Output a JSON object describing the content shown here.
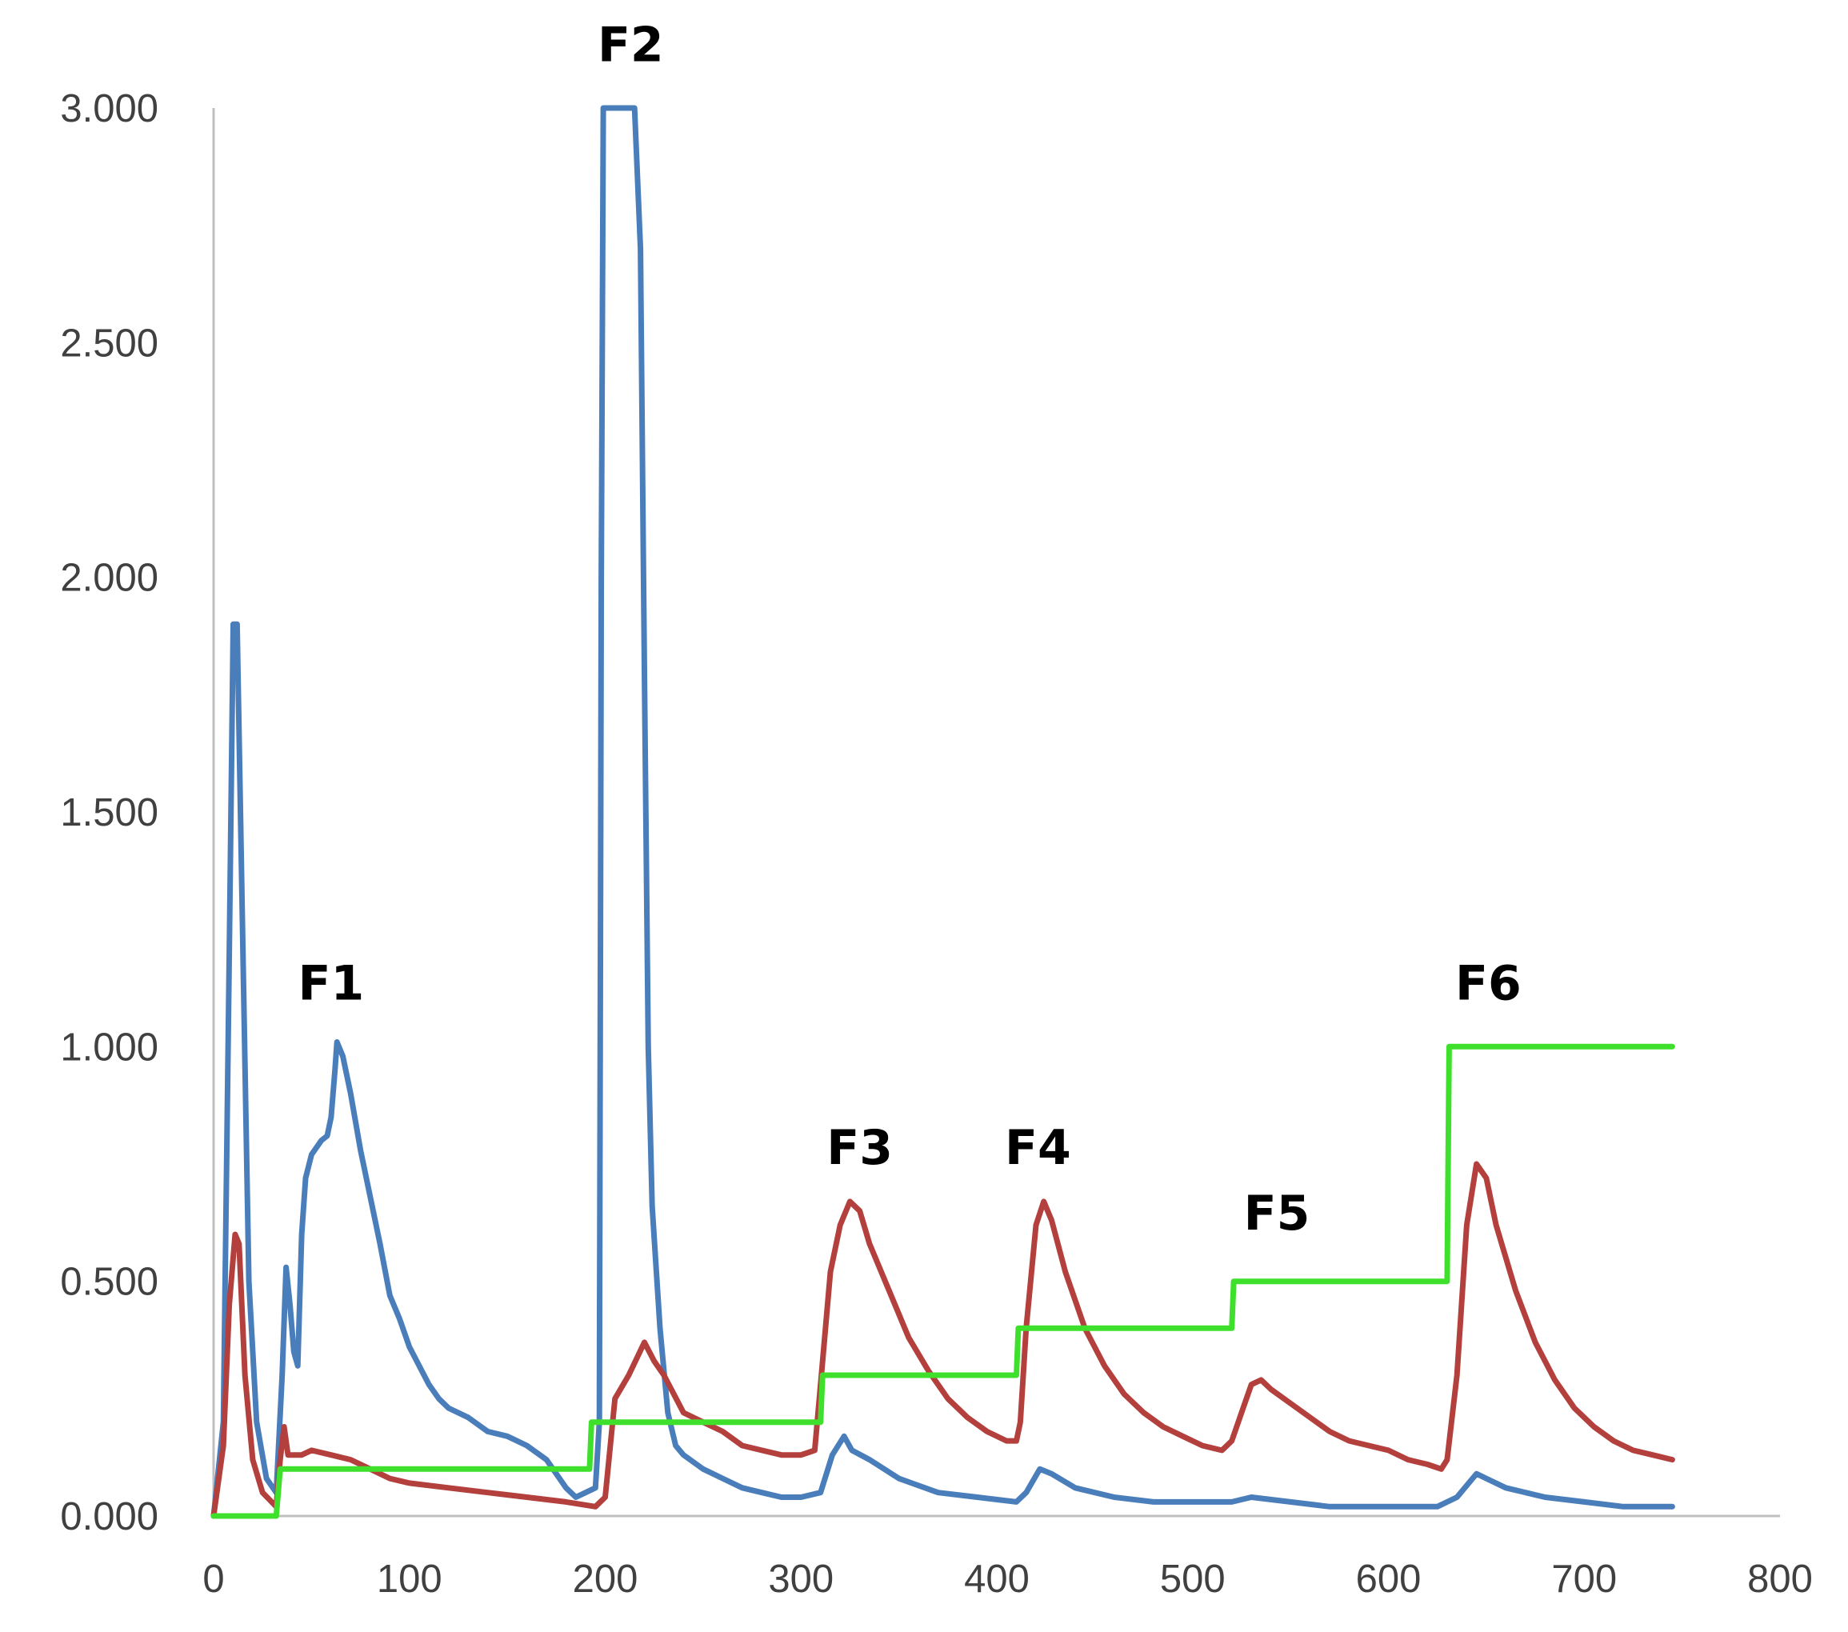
{
  "chart_data": {
    "type": "line",
    "title": "",
    "xlabel": "",
    "ylabel": "",
    "xlim": [
      0,
      800
    ],
    "ylim": [
      0,
      3
    ],
    "grid": false,
    "x_ticks": [
      {
        "value": 0,
        "label": "0"
      },
      {
        "value": 100,
        "label": "100"
      },
      {
        "value": 200,
        "label": "200"
      },
      {
        "value": 300,
        "label": "300"
      },
      {
        "value": 400,
        "label": "400"
      },
      {
        "value": 500,
        "label": "500"
      },
      {
        "value": 600,
        "label": "600"
      },
      {
        "value": 700,
        "label": "700"
      },
      {
        "value": 800,
        "label": "800"
      }
    ],
    "y_ticks": [
      {
        "value": 0,
        "label": "0.000"
      },
      {
        "value": 0.5,
        "label": "0.500"
      },
      {
        "value": 1.0,
        "label": "1.000"
      },
      {
        "value": 1.5,
        "label": "1.500"
      },
      {
        "value": 2.0,
        "label": "2.000"
      },
      {
        "value": 2.5,
        "label": "2.500"
      },
      {
        "value": 3.0,
        "label": "3.000"
      }
    ],
    "series": [
      {
        "name": "blue",
        "color": "#4a7ebb",
        "points": [
          [
            0,
            0
          ],
          [
            5,
            0.2
          ],
          [
            8,
            1.2
          ],
          [
            10,
            1.9
          ],
          [
            12,
            1.9
          ],
          [
            15,
            1.2
          ],
          [
            18,
            0.5
          ],
          [
            22,
            0.2
          ],
          [
            27,
            0.08
          ],
          [
            32,
            0.05
          ],
          [
            35,
            0.3
          ],
          [
            37,
            0.53
          ],
          [
            39,
            0.45
          ],
          [
            41,
            0.35
          ],
          [
            43,
            0.32
          ],
          [
            45,
            0.6
          ],
          [
            47,
            0.72
          ],
          [
            50,
            0.77
          ],
          [
            55,
            0.8
          ],
          [
            58,
            0.81
          ],
          [
            60,
            0.85
          ],
          [
            62,
            0.95
          ],
          [
            63,
            1.01
          ],
          [
            66,
            0.98
          ],
          [
            70,
            0.9
          ],
          [
            75,
            0.78
          ],
          [
            80,
            0.68
          ],
          [
            85,
            0.58
          ],
          [
            90,
            0.47
          ],
          [
            95,
            0.42
          ],
          [
            100,
            0.36
          ],
          [
            105,
            0.32
          ],
          [
            110,
            0.28
          ],
          [
            115,
            0.25
          ],
          [
            120,
            0.23
          ],
          [
            130,
            0.21
          ],
          [
            140,
            0.18
          ],
          [
            150,
            0.17
          ],
          [
            160,
            0.15
          ],
          [
            170,
            0.12
          ],
          [
            180,
            0.06
          ],
          [
            185,
            0.04
          ],
          [
            190,
            0.05
          ],
          [
            195,
            0.06
          ],
          [
            197,
            0.2
          ],
          [
            198,
            2.0
          ],
          [
            199,
            3.0
          ],
          [
            215,
            3.0
          ],
          [
            218,
            2.7
          ],
          [
            220,
            1.8
          ],
          [
            222,
            1.0
          ],
          [
            224,
            0.66
          ],
          [
            228,
            0.4
          ],
          [
            232,
            0.22
          ],
          [
            236,
            0.15
          ],
          [
            240,
            0.13
          ],
          [
            250,
            0.1
          ],
          [
            260,
            0.08
          ],
          [
            270,
            0.06
          ],
          [
            280,
            0.05
          ],
          [
            290,
            0.04
          ],
          [
            300,
            0.04
          ],
          [
            310,
            0.05
          ],
          [
            316,
            0.13
          ],
          [
            322,
            0.17
          ],
          [
            326,
            0.14
          ],
          [
            335,
            0.12
          ],
          [
            350,
            0.08
          ],
          [
            370,
            0.05
          ],
          [
            390,
            0.04
          ],
          [
            410,
            0.03
          ],
          [
            415,
            0.05
          ],
          [
            422,
            0.1
          ],
          [
            428,
            0.09
          ],
          [
            440,
            0.06
          ],
          [
            460,
            0.04
          ],
          [
            480,
            0.03
          ],
          [
            500,
            0.03
          ],
          [
            520,
            0.03
          ],
          [
            530,
            0.04
          ],
          [
            550,
            0.03
          ],
          [
            570,
            0.02
          ],
          [
            590,
            0.02
          ],
          [
            610,
            0.02
          ],
          [
            625,
            0.02
          ],
          [
            635,
            0.04
          ],
          [
            645,
            0.09
          ],
          [
            650,
            0.08
          ],
          [
            660,
            0.06
          ],
          [
            680,
            0.04
          ],
          [
            700,
            0.03
          ],
          [
            720,
            0.02
          ],
          [
            745,
            0.02
          ]
        ]
      },
      {
        "name": "red",
        "color": "#b3403d",
        "points": [
          [
            0,
            0
          ],
          [
            5,
            0.15
          ],
          [
            8,
            0.45
          ],
          [
            11,
            0.6
          ],
          [
            13,
            0.58
          ],
          [
            16,
            0.3
          ],
          [
            20,
            0.12
          ],
          [
            25,
            0.05
          ],
          [
            32,
            0.02
          ],
          [
            34,
            0.12
          ],
          [
            36,
            0.19
          ],
          [
            38,
            0.13
          ],
          [
            45,
            0.13
          ],
          [
            50,
            0.14
          ],
          [
            60,
            0.13
          ],
          [
            70,
            0.12
          ],
          [
            80,
            0.1
          ],
          [
            90,
            0.08
          ],
          [
            100,
            0.07
          ],
          [
            120,
            0.06
          ],
          [
            140,
            0.05
          ],
          [
            160,
            0.04
          ],
          [
            180,
            0.03
          ],
          [
            195,
            0.02
          ],
          [
            200,
            0.04
          ],
          [
            205,
            0.25
          ],
          [
            212,
            0.3
          ],
          [
            220,
            0.37
          ],
          [
            225,
            0.33
          ],
          [
            230,
            0.3
          ],
          [
            240,
            0.22
          ],
          [
            250,
            0.2
          ],
          [
            260,
            0.18
          ],
          [
            270,
            0.15
          ],
          [
            280,
            0.14
          ],
          [
            290,
            0.13
          ],
          [
            300,
            0.13
          ],
          [
            307,
            0.14
          ],
          [
            310,
            0.28
          ],
          [
            315,
            0.52
          ],
          [
            320,
            0.62
          ],
          [
            325,
            0.67
          ],
          [
            330,
            0.65
          ],
          [
            335,
            0.58
          ],
          [
            345,
            0.48
          ],
          [
            355,
            0.38
          ],
          [
            365,
            0.31
          ],
          [
            375,
            0.25
          ],
          [
            385,
            0.21
          ],
          [
            395,
            0.18
          ],
          [
            405,
            0.16
          ],
          [
            410,
            0.16
          ],
          [
            412,
            0.2
          ],
          [
            415,
            0.4
          ],
          [
            420,
            0.62
          ],
          [
            424,
            0.67
          ],
          [
            428,
            0.63
          ],
          [
            435,
            0.52
          ],
          [
            445,
            0.4
          ],
          [
            455,
            0.32
          ],
          [
            465,
            0.26
          ],
          [
            475,
            0.22
          ],
          [
            485,
            0.19
          ],
          [
            495,
            0.17
          ],
          [
            505,
            0.15
          ],
          [
            515,
            0.14
          ],
          [
            520,
            0.16
          ],
          [
            525,
            0.22
          ],
          [
            530,
            0.28
          ],
          [
            535,
            0.29
          ],
          [
            540,
            0.27
          ],
          [
            550,
            0.24
          ],
          [
            560,
            0.21
          ],
          [
            570,
            0.18
          ],
          [
            580,
            0.16
          ],
          [
            590,
            0.15
          ],
          [
            600,
            0.14
          ],
          [
            610,
            0.12
          ],
          [
            620,
            0.11
          ],
          [
            627,
            0.1
          ],
          [
            630,
            0.12
          ],
          [
            635,
            0.3
          ],
          [
            640,
            0.62
          ],
          [
            645,
            0.75
          ],
          [
            650,
            0.72
          ],
          [
            655,
            0.62
          ],
          [
            665,
            0.48
          ],
          [
            675,
            0.37
          ],
          [
            685,
            0.29
          ],
          [
            695,
            0.23
          ],
          [
            705,
            0.19
          ],
          [
            715,
            0.16
          ],
          [
            725,
            0.14
          ],
          [
            735,
            0.13
          ],
          [
            745,
            0.12
          ]
        ]
      },
      {
        "name": "green",
        "color": "#3fe02c",
        "points": [
          [
            0,
            0
          ],
          [
            32,
            0
          ],
          [
            34,
            0.1
          ],
          [
            192,
            0.1
          ],
          [
            193,
            0.2
          ],
          [
            310,
            0.2
          ],
          [
            311,
            0.3
          ],
          [
            410,
            0.3
          ],
          [
            411,
            0.4
          ],
          [
            520,
            0.4
          ],
          [
            521,
            0.5
          ],
          [
            630,
            0.5
          ],
          [
            631,
            1.0
          ],
          [
            745,
            1.0
          ]
        ]
      }
    ],
    "annotations": [
      {
        "label": "F1",
        "x": 60,
        "y": 1.1
      },
      {
        "label": "F2",
        "x": 213,
        "y": 3.1
      },
      {
        "label": "F3",
        "x": 330,
        "y": 0.75
      },
      {
        "label": "F4",
        "x": 421,
        "y": 0.75
      },
      {
        "label": "F5",
        "x": 543,
        "y": 0.61
      },
      {
        "label": "F6",
        "x": 651,
        "y": 1.1
      }
    ]
  }
}
